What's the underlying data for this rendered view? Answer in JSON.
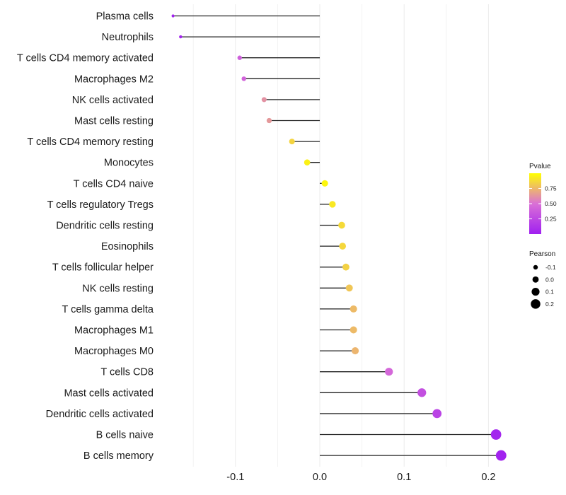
{
  "chart_data": {
    "type": "lollipop",
    "title": "",
    "xlabel": "",
    "ylabel": "",
    "xlim": [
      -0.185,
      0.235
    ],
    "x_ticks": [
      -0.1,
      0.0,
      0.1,
      0.2
    ],
    "x_tick_labels": [
      "-0.1",
      "0.0",
      "0.1",
      "0.2"
    ],
    "x_minor_ticks": [
      -0.15,
      -0.05,
      0.05,
      0.15
    ],
    "grid": true,
    "categories": [
      "Plasma cells",
      "Neutrophils",
      "T cells CD4 memory activated",
      "Macrophages M2",
      "NK cells activated",
      "Mast cells resting",
      "T cells CD4 memory resting",
      "Monocytes",
      "T cells CD4 naive",
      "T cells regulatory  Tregs ",
      "Dendritic cells resting",
      "Eosinophils",
      "T cells follicular helper",
      "NK cells resting",
      "T cells gamma delta",
      "Macrophages M1",
      "Macrophages M0",
      "T cells CD8",
      "Mast cells activated",
      "Dendritic cells activated",
      "B cells naive",
      "B cells memory"
    ],
    "values": [
      -0.174,
      -0.165,
      -0.095,
      -0.09,
      -0.066,
      -0.06,
      -0.033,
      -0.015,
      0.006,
      0.015,
      0.026,
      0.027,
      0.031,
      0.035,
      0.04,
      0.04,
      0.042,
      0.082,
      0.121,
      0.139,
      0.209,
      0.215
    ],
    "pvalues": [
      0.01,
      0.03,
      0.4,
      0.42,
      0.62,
      0.64,
      0.85,
      0.95,
      0.97,
      0.92,
      0.87,
      0.86,
      0.84,
      0.8,
      0.76,
      0.76,
      0.74,
      0.45,
      0.3,
      0.22,
      0.03,
      0.02
    ],
    "legend": {
      "color": {
        "title": "Pvalue",
        "ticks": [
          0.25,
          0.5,
          0.75
        ],
        "tick_labels": [
          "0.25",
          "0.50",
          "0.75"
        ],
        "range": [
          0.0,
          1.0
        ],
        "low_color": "#A020F0",
        "mid_color": "#DA70D6",
        "high_color": "#FFFF00"
      },
      "size": {
        "title": "Pearson",
        "values": [
          -0.1,
          0.0,
          0.1,
          0.2
        ],
        "labels": [
          "-0.1",
          "0.0",
          "0.1",
          "0.2"
        ]
      },
      "placement": "right"
    }
  }
}
